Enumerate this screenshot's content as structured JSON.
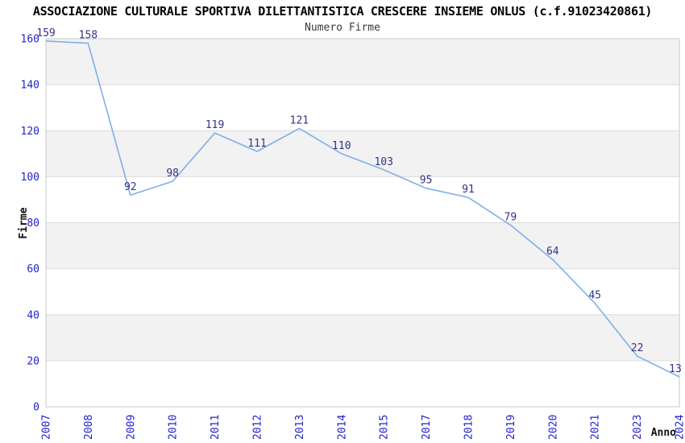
{
  "chart_data": {
    "type": "line",
    "title": "ASSOCIAZIONE CULTURALE SPORTIVA DILETTANTISTICA CRESCERE INSIEME ONLUS (c.f.91023420861)",
    "subtitle": "Numero Firme",
    "xlabel": "Anno",
    "ylabel": "Firme",
    "categories": [
      "2007",
      "2008",
      "2009",
      "2010",
      "2011",
      "2012",
      "2013",
      "2014",
      "2015",
      "2017",
      "2018",
      "2019",
      "2020",
      "2021",
      "2023",
      "2024"
    ],
    "values": [
      159,
      158,
      92,
      98,
      119,
      111,
      121,
      110,
      103,
      95,
      91,
      79,
      64,
      45,
      22,
      13
    ],
    "ylim": [
      0,
      160
    ],
    "ytick_step": 20,
    "yticks": [
      0,
      20,
      40,
      60,
      80,
      100,
      120,
      140,
      160
    ],
    "grid": "horizontal gridlines with alternating gray bands",
    "legend": "none",
    "markers": "none",
    "colors": {
      "line": "#7FAFE8",
      "data_label": "#333388",
      "tick_label": "#2222CC",
      "band": "#F2F2F2",
      "gridline": "#DBDBDB",
      "plot_border": "#C9C9C9",
      "title": "#000000",
      "axis_label": "#111111"
    }
  }
}
